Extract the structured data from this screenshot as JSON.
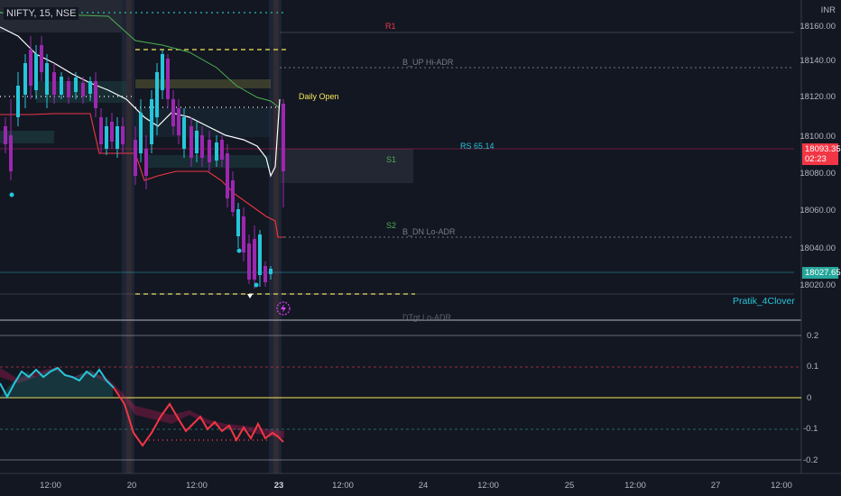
{
  "header": {
    "symbol": "NIFTY, 15, NSE"
  },
  "currency": "INR",
  "price_axis": {
    "labels": [
      "18160.00",
      "18140.00",
      "18120.00",
      "18100.00",
      "18080.00",
      "18060.00",
      "18040.00",
      "18020.00"
    ]
  },
  "indicator_axis": {
    "labels": [
      "0.2",
      "0.1",
      "0",
      "-0.1",
      "-0.2"
    ]
  },
  "time_axis": {
    "labels": [
      "12:00",
      "20",
      "12:00",
      "23",
      "12:00",
      "24",
      "12:00",
      "25",
      "12:00",
      "27",
      "12:00"
    ]
  },
  "levels": {
    "r1": "R1",
    "up_hi_adr": "B_UP Hi-ADR",
    "daily_open": "Daily Open",
    "rs": "RS 65.14",
    "s1": "S1",
    "s2": "S2",
    "dn_lo_adr": "B_DN Lo-ADR",
    "dtgt_lo_adr": "DTgt Lo-ADR"
  },
  "last_price": {
    "value": "18093.35",
    "countdown": "02:23",
    "color": "#f23645"
  },
  "crosshair_price": {
    "value": "18027.65",
    "color": "#26a69a"
  },
  "watermark": "Pratik_4Clover",
  "colors": {
    "background": "#131722",
    "bull": "#26c6da",
    "bear": "#9c27b0",
    "accent_red": "#f23645",
    "yellow": "#f7e85a"
  }
}
